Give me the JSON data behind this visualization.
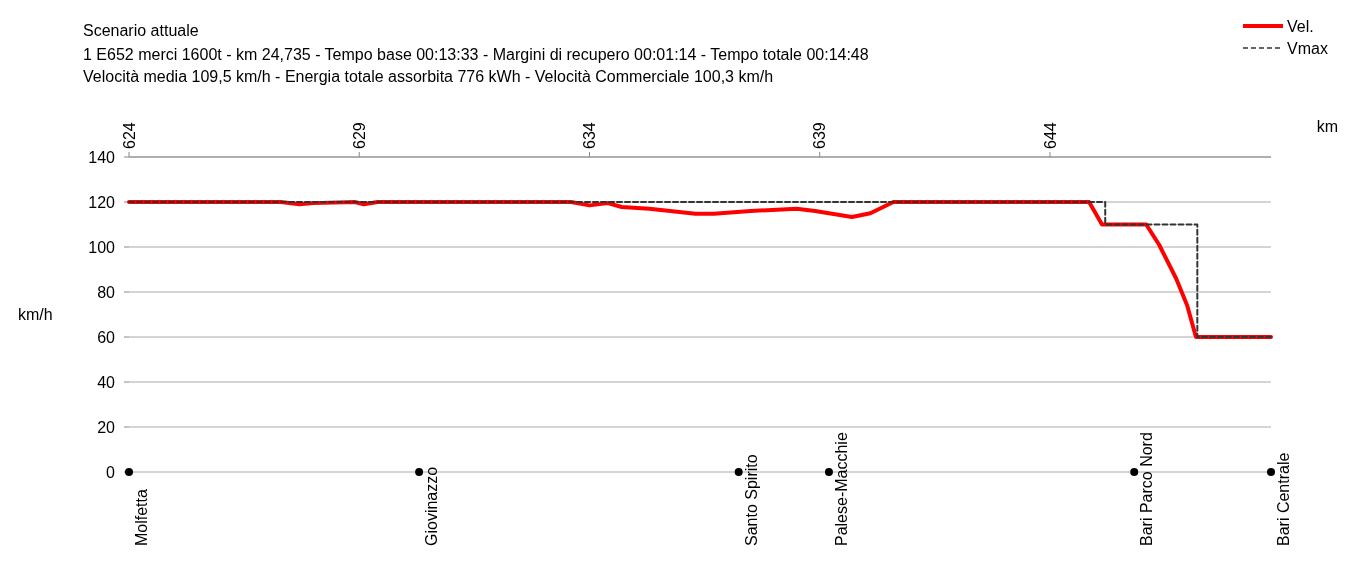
{
  "chart_data": {
    "type": "line",
    "title": "Scenario attuale",
    "subtitle": "1 E652 merci 1600t  -  km 24,735  -  Tempo base 00:13:33  -  Margini di recupero 00:01:14  -  Tempo totale 00:14:48\nVelocità media 109,5 km/h  -  Energia totale assorbita 776 kWh  -  Velocità Commerciale 100,3 km/h",
    "xlabel": "km",
    "ylabel": "km/h",
    "xlim": [
      624,
      648.8
    ],
    "xticks": [
      624,
      629,
      634,
      639,
      644
    ],
    "ylim": [
      0,
      140
    ],
    "yticks": [
      0,
      20,
      40,
      60,
      80,
      100,
      120,
      140
    ],
    "grid": "y",
    "legend": "top right",
    "series": [
      {
        "name": "Vel.",
        "color": "#ff0000",
        "line_style": "solid",
        "x": [
          624,
          627.3,
          627.7,
          628.0,
          628.9,
          629.1,
          629.4,
          633.6,
          634.0,
          634.4,
          634.7,
          635.3,
          636.3,
          636.7,
          637.5,
          638.5,
          638.9,
          639.7,
          640.1,
          640.6,
          644.85,
          645.13,
          646.09,
          646.37,
          646.74,
          646.98,
          647.17,
          648.8
        ],
        "values": [
          120,
          120,
          119,
          119.5,
          120,
          119,
          120,
          120,
          118.5,
          119.5,
          117.8,
          117,
          114.8,
          114.8,
          116,
          117,
          116,
          113.3,
          115,
          120,
          120,
          110,
          110,
          101,
          86,
          74,
          60,
          60
        ]
      },
      {
        "name": "Vmax",
        "color": "#333333",
        "line_style": "dashed",
        "x": [
          624,
          645.2,
          645.2,
          647.2,
          647.2,
          648.8
        ],
        "values": [
          120,
          120,
          110,
          110,
          60,
          60
        ]
      },
      {
        "type": "scatter",
        "color": "#000000",
        "marker": "circle",
        "x": [
          624,
          630.3,
          637.24,
          639.2,
          645.83,
          648.8
        ],
        "values": [
          0,
          0,
          0,
          0,
          0,
          0
        ]
      }
    ],
    "annotations": [
      {
        "text": "Molfetta",
        "x": 624,
        "y": 0
      },
      {
        "text": "Giovinazzo",
        "x": 630.3,
        "y": 0
      },
      {
        "text": "Santo Spirito",
        "x": 637.24,
        "y": 0
      },
      {
        "text": "Palese-Macchie",
        "x": 639.2,
        "y": 0
      },
      {
        "text": "Bari Parco Nord",
        "x": 645.83,
        "y": 0
      },
      {
        "text": "Bari Centrale",
        "x": 648.8,
        "y": 0
      }
    ]
  }
}
